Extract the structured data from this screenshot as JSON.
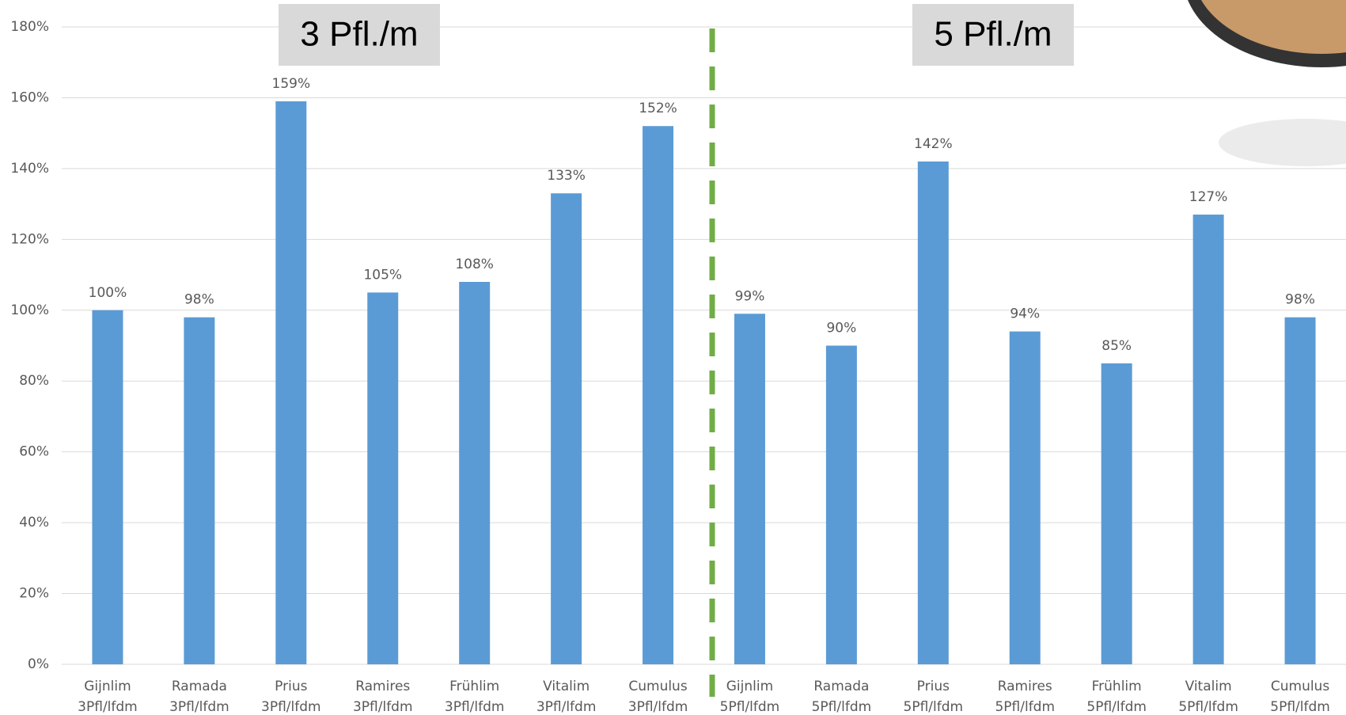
{
  "chart_data": {
    "type": "bar",
    "categories": [
      [
        "Gijnlim",
        "3Pfl/lfdm"
      ],
      [
        "Ramada",
        "3Pfl/lfdm"
      ],
      [
        "Prius",
        "3Pfl/lfdm"
      ],
      [
        "Ramires",
        "3Pfl/lfdm"
      ],
      [
        "Frühlim",
        "3Pfl/lfdm"
      ],
      [
        "Vitalim",
        "3Pfl/lfdm"
      ],
      [
        "Cumulus",
        "3Pfl/lfdm"
      ],
      [
        "Gijnlim",
        "5Pfl/lfdm"
      ],
      [
        "Ramada",
        "5Pfl/lfdm"
      ],
      [
        "Prius",
        "5Pfl/lfdm"
      ],
      [
        "Ramires",
        "5Pfl/lfdm"
      ],
      [
        "Frühlim",
        "5Pfl/lfdm"
      ],
      [
        "Vitalim",
        "5Pfl/lfdm"
      ],
      [
        "Cumulus",
        "5Pfl/lfdm"
      ]
    ],
    "values": [
      100,
      98,
      159,
      105,
      108,
      133,
      152,
      99,
      90,
      142,
      94,
      85,
      127,
      98
    ],
    "value_labels": [
      "100%",
      "98%",
      "159%",
      "105%",
      "108%",
      "133%",
      "152%",
      "99%",
      "90%",
      "142%",
      "94%",
      "85%",
      "127%",
      "98%"
    ],
    "color": "#5b9bd5",
    "ylim": [
      0,
      180
    ],
    "yticks": [
      {
        "value": 0,
        "label": "0%"
      },
      {
        "value": 20,
        "label": "20%"
      },
      {
        "value": 40,
        "label": "40%"
      },
      {
        "value": 60,
        "label": "60%"
      },
      {
        "value": 80,
        "label": "80%"
      },
      {
        "value": 100,
        "label": "100%"
      },
      {
        "value": 120,
        "label": "120%"
      },
      {
        "value": 140,
        "label": "140%"
      },
      {
        "value": 160,
        "label": "160%"
      },
      {
        "value": 180,
        "label": "180%"
      }
    ],
    "grid": true,
    "annotations": [
      "3 Pfl./m",
      "5 Pfl./m"
    ]
  }
}
